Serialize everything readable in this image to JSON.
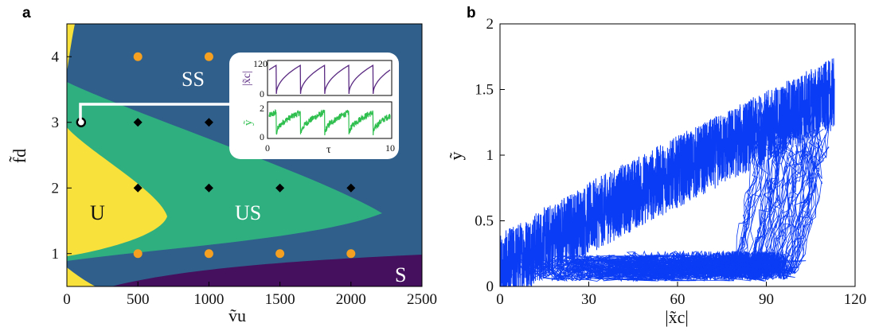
{
  "panels": {
    "a_letter": "a",
    "b_letter": "b"
  },
  "chart_data": [
    {
      "type": "scatter",
      "panel": "a",
      "xlabel": "ṽu",
      "ylabel": "f̃d",
      "xlim": [
        0,
        2500
      ],
      "ylim": [
        0.5,
        4.5
      ],
      "xticks": [
        "0",
        "500",
        "1000",
        "1500",
        "2000",
        "2500"
      ],
      "yticks": [
        "1",
        "2",
        "3",
        "4"
      ],
      "regions": [
        {
          "label": "SS",
          "color": "#2f5f8a"
        },
        {
          "label": "US",
          "color": "#2fae80"
        },
        {
          "label": "U",
          "color": "#f7e13a"
        },
        {
          "label": "S",
          "color": "#45105e"
        }
      ],
      "points": [
        {
          "x": 500,
          "y": 4,
          "marker": "circle",
          "color": "#f5a020"
        },
        {
          "x": 1000,
          "y": 4,
          "marker": "circle",
          "color": "#f5a020"
        },
        {
          "x": 500,
          "y": 3,
          "marker": "diamond",
          "color": "#000000"
        },
        {
          "x": 1000,
          "y": 3,
          "marker": "diamond",
          "color": "#000000"
        },
        {
          "x": 500,
          "y": 2,
          "marker": "diamond",
          "color": "#000000"
        },
        {
          "x": 1000,
          "y": 2,
          "marker": "diamond",
          "color": "#000000"
        },
        {
          "x": 1500,
          "y": 2,
          "marker": "diamond",
          "color": "#000000"
        },
        {
          "x": 2000,
          "y": 2,
          "marker": "diamond",
          "color": "#000000"
        },
        {
          "x": 500,
          "y": 1,
          "marker": "circle",
          "color": "#f5a020"
        },
        {
          "x": 1000,
          "y": 1,
          "marker": "circle",
          "color": "#f5a020"
        },
        {
          "x": 1500,
          "y": 1,
          "marker": "circle",
          "color": "#f5a020"
        },
        {
          "x": 2000,
          "y": 1,
          "marker": "circle",
          "color": "#f5a020"
        },
        {
          "x": 100,
          "y": 3,
          "marker": "open-circle",
          "color": "#000000"
        }
      ],
      "inset": {
        "top": {
          "ylabel": "|x̃c|",
          "yticks": [
            "0",
            "120"
          ],
          "color": "#5a2a82"
        },
        "bottom": {
          "ylabel": "ỹ",
          "yticks": [
            "0",
            "2"
          ],
          "color": "#2fbf4f"
        },
        "xlabel": "τ",
        "xticks": [
          "0",
          "10"
        ],
        "periods": 5
      }
    },
    {
      "type": "line",
      "panel": "b",
      "xlabel": "|x̃c|",
      "ylabel": "ỹ",
      "xlim": [
        0,
        120
      ],
      "ylim": [
        0,
        2
      ],
      "xticks": [
        "0",
        "30",
        "60",
        "90",
        "120"
      ],
      "yticks": [
        "0",
        "0.5",
        "1",
        "1.5",
        "2"
      ],
      "color": "#0b3cf5"
    }
  ]
}
